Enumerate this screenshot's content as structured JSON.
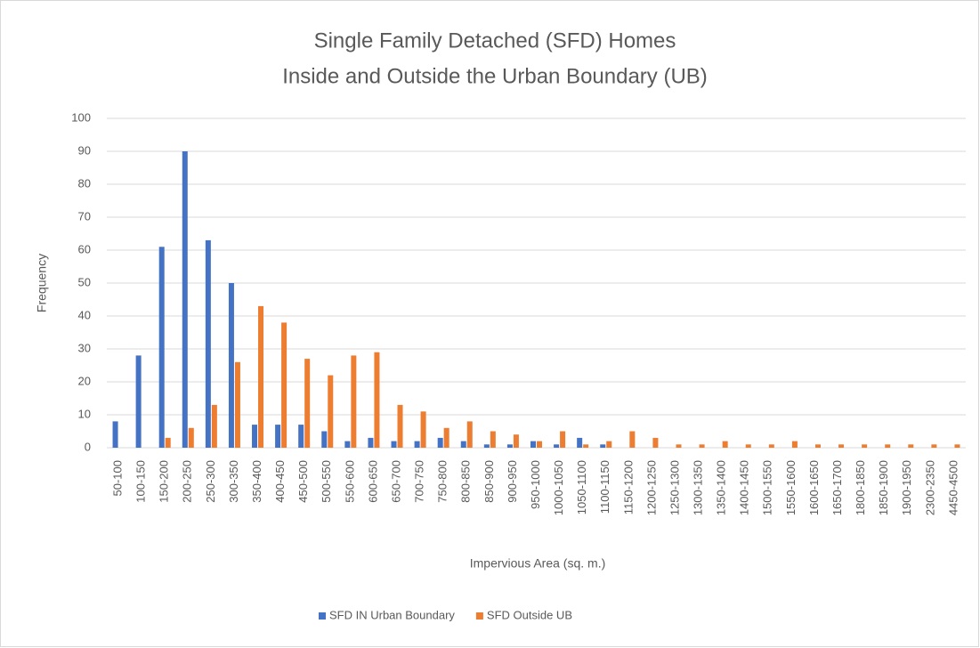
{
  "chart_data": {
    "type": "bar",
    "title": [
      "Single Family Detached (SFD) Homes",
      "Inside and Outside the Urban Boundary (UB)"
    ],
    "x_label": "Impervious Area (sq. m.)",
    "y_label": "Frequency",
    "categories": [
      "50-100",
      "100-150",
      "150-200",
      "200-250",
      "250-300",
      "300-350",
      "350-400",
      "400-450",
      "450-500",
      "500-550",
      "550-600",
      "600-650",
      "650-700",
      "700-750",
      "750-800",
      "800-850",
      "850-900",
      "900-950",
      "950-1000",
      "1000-1050",
      "1050-1100",
      "1100-1150",
      "1150-1200",
      "1200-1250",
      "1250-1300",
      "1300-1350",
      "1350-1400",
      "1400-1450",
      "1500-1550",
      "1550-1600",
      "1600-1650",
      "1650-1700",
      "1800-1850",
      "1850-1900",
      "1900-1950",
      "2300-2350",
      "4450-4500"
    ],
    "series": [
      {
        "name": "SFD IN Urban Boundary",
        "color": "#4472c4",
        "values": [
          8,
          28,
          61,
          90,
          63,
          50,
          7,
          7,
          7,
          5,
          2,
          3,
          2,
          2,
          3,
          2,
          1,
          1,
          2,
          1,
          3,
          1,
          0,
          0,
          0,
          0,
          0,
          0,
          0,
          0,
          0,
          0,
          0,
          0,
          0,
          0,
          0
        ]
      },
      {
        "name": "SFD Outside UB",
        "color": "#ed7d31",
        "values": [
          0,
          0,
          3,
          6,
          13,
          26,
          43,
          38,
          27,
          22,
          28,
          29,
          13,
          11,
          6,
          8,
          5,
          4,
          2,
          5,
          1,
          2,
          5,
          3,
          1,
          1,
          2,
          1,
          1,
          2,
          1,
          1,
          1,
          1,
          1,
          1,
          1
        ]
      }
    ],
    "ylim": [
      0,
      100
    ],
    "yticks": [
      0,
      10,
      20,
      30,
      40,
      50,
      60,
      70,
      80,
      90,
      100
    ],
    "grid": true,
    "legend": "bottom"
  }
}
